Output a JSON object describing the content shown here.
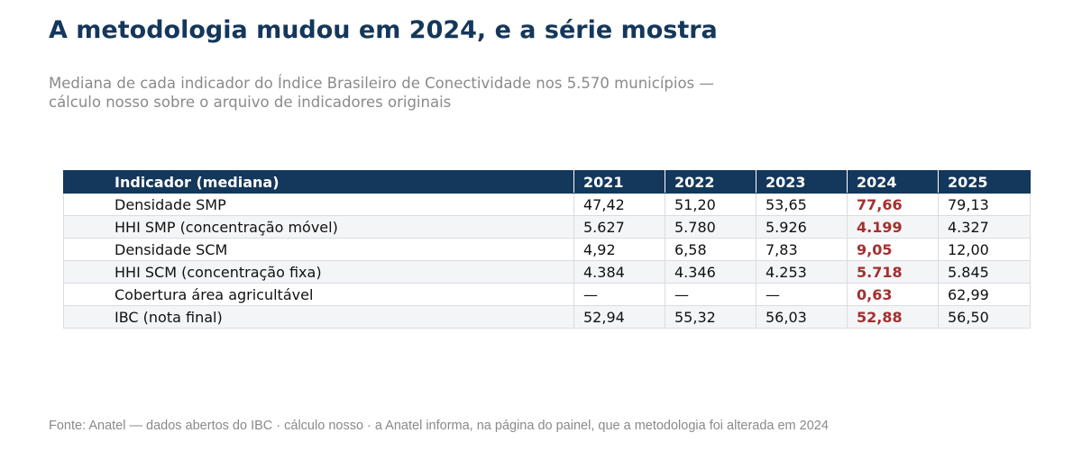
{
  "title": "A metodologia mudou em 2024, e a série mostra",
  "subtitle": "Mediana de cada indicador do Índice Brasileiro de Conectividade nos 5.570 municípios — cálculo nosso sobre o arquivo de indicadores originais",
  "source": "Fonte: Anatel — dados abertos do IBC · cálculo nosso · a Anatel informa, na página do painel, que a metodologia foi alterada em 2024",
  "colors": {
    "header_bg": "#14375c",
    "highlight": "#a3302f",
    "stripe": "#f4f5f7"
  },
  "chart_data": {
    "type": "table",
    "columns": [
      "Indicador (mediana)",
      "2021",
      "2022",
      "2023",
      "2024",
      "2025"
    ],
    "highlight_column": "2024",
    "rows": [
      {
        "indicator": "Densidade SMP",
        "values": [
          "47,42",
          "51,20",
          "53,65",
          "77,66",
          "79,13"
        ]
      },
      {
        "indicator": "HHI SMP (concentração móvel)",
        "values": [
          "5.627",
          "5.780",
          "5.926",
          "4.199",
          "4.327"
        ]
      },
      {
        "indicator": "Densidade SCM",
        "values": [
          "4,92",
          "6,58",
          "7,83",
          "9,05",
          "12,00"
        ]
      },
      {
        "indicator": "HHI SCM (concentração fixa)",
        "values": [
          "4.384",
          "4.346",
          "4.253",
          "5.718",
          "5.845"
        ]
      },
      {
        "indicator": "Cobertura área agricultável",
        "values": [
          "—",
          "—",
          "—",
          "0,63",
          "62,99"
        ]
      },
      {
        "indicator": "IBC (nota final)",
        "values": [
          "52,94",
          "55,32",
          "56,03",
          "52,88",
          "56,50"
        ]
      }
    ]
  }
}
